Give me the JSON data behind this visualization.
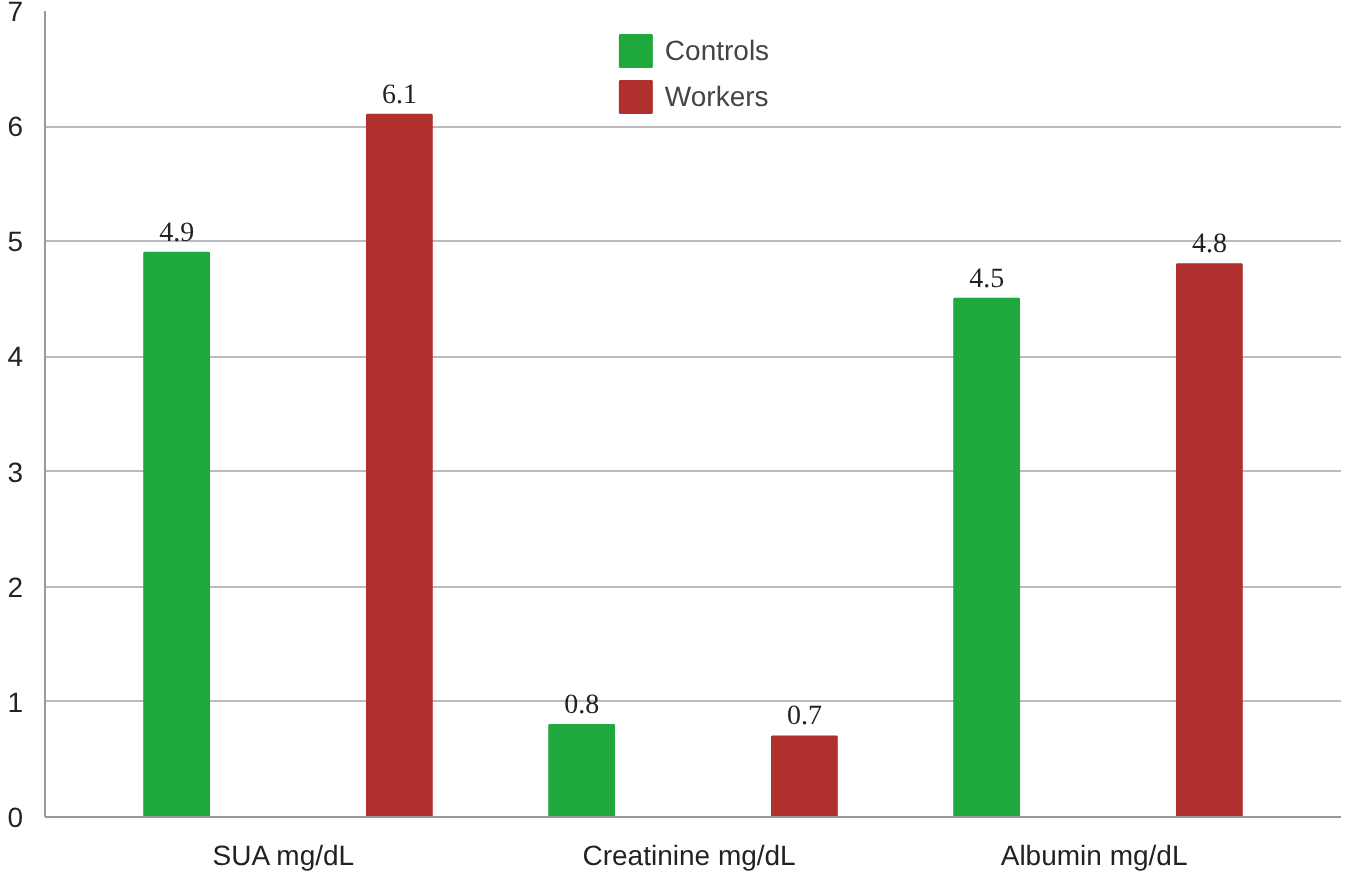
{
  "chart_data": {
    "type": "bar",
    "categories": [
      "SUA  mg/dL",
      "Creatinine  mg/dL",
      "Albumin  mg/dL"
    ],
    "series": [
      {
        "name": "Controls",
        "color": "#1fa83c",
        "values": [
          4.9,
          0.8,
          4.5
        ]
      },
      {
        "name": "Workers",
        "color": "#b0302e",
        "values": [
          6.1,
          0.7,
          4.8
        ]
      }
    ],
    "ylim": [
      0,
      7
    ],
    "yticks": [
      0,
      1,
      2,
      3,
      4,
      5,
      6,
      7
    ],
    "grid": "y",
    "legend": "top",
    "data_labels": true
  }
}
